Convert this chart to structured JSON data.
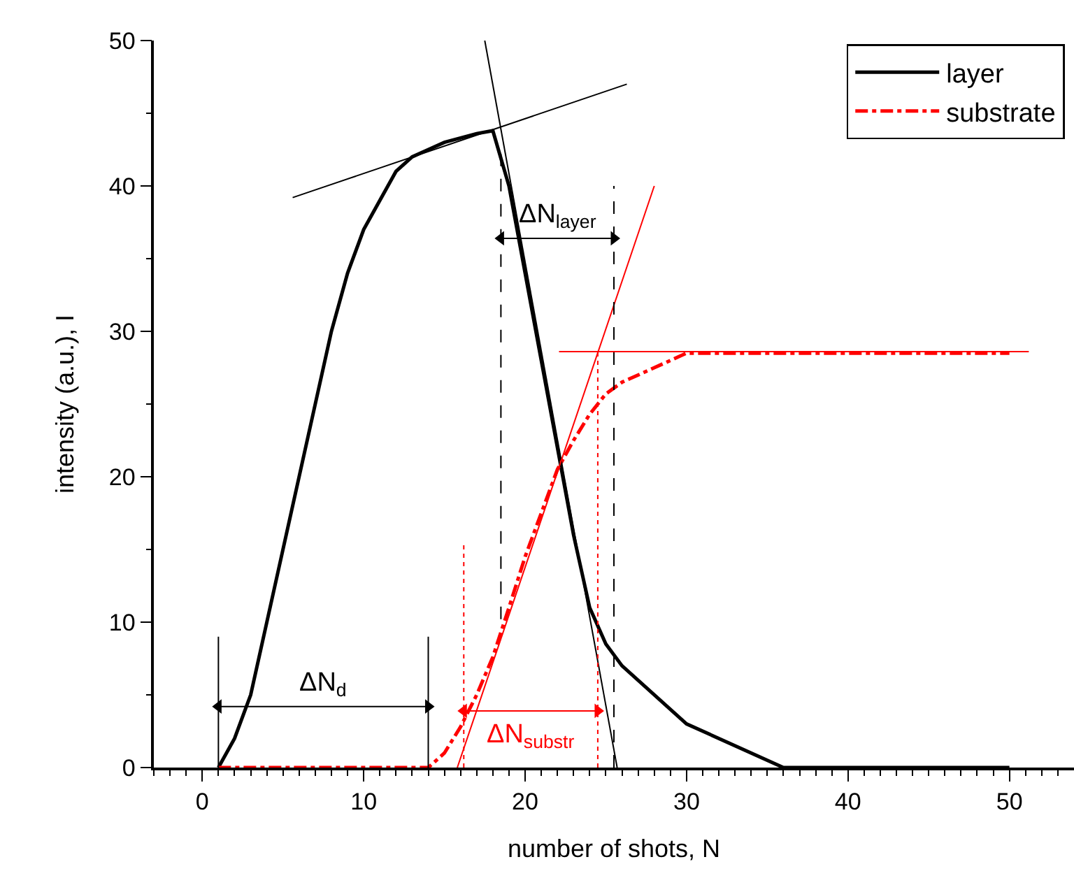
{
  "chart_data": {
    "type": "line",
    "xlabel": "number of shots, N",
    "ylabel": "intensity (a.u.), I",
    "xlim": [
      -3,
      54
    ],
    "ylim": [
      0,
      50
    ],
    "xticks": [
      {
        "value": -3,
        "label": null
      },
      {
        "value": -2,
        "label": null
      },
      {
        "value": -1,
        "label": null
      },
      0,
      {
        "value": 1,
        "label": null
      },
      {
        "value": 2,
        "label": null
      },
      {
        "value": 3,
        "label": null
      },
      {
        "value": 4,
        "label": null
      },
      {
        "value": 5,
        "label": null
      },
      {
        "value": 6,
        "label": null
      },
      {
        "value": 7,
        "label": null
      },
      {
        "value": 8,
        "label": null
      },
      {
        "value": 9,
        "label": null
      },
      10,
      {
        "value": 11,
        "label": null
      },
      {
        "value": 12,
        "label": null
      },
      {
        "value": 13,
        "label": null
      },
      {
        "value": 14,
        "label": null
      },
      {
        "value": 15,
        "label": null
      },
      {
        "value": 16,
        "label": null
      },
      {
        "value": 17,
        "label": null
      },
      {
        "value": 18,
        "label": null
      },
      {
        "value": 19,
        "label": null
      },
      20,
      {
        "value": 21,
        "label": null
      },
      {
        "value": 22,
        "label": null
      },
      {
        "value": 23,
        "label": null
      },
      {
        "value": 24,
        "label": null
      },
      {
        "value": 25,
        "label": null
      },
      {
        "value": 26,
        "label": null
      },
      {
        "value": 27,
        "label": null
      },
      {
        "value": 28,
        "label": null
      },
      {
        "value": 29,
        "label": null
      },
      30,
      {
        "value": 31,
        "label": null
      },
      {
        "value": 32,
        "label": null
      },
      {
        "value": 33,
        "label": null
      },
      {
        "value": 34,
        "label": null
      },
      {
        "value": 35,
        "label": null
      },
      {
        "value": 36,
        "label": null
      },
      {
        "value": 37,
        "label": null
      },
      {
        "value": 38,
        "label": null
      },
      {
        "value": 39,
        "label": null
      },
      40,
      {
        "value": 41,
        "label": null
      },
      {
        "value": 42,
        "label": null
      },
      {
        "value": 43,
        "label": null
      },
      {
        "value": 44,
        "label": null
      },
      {
        "value": 45,
        "label": null
      },
      {
        "value": 46,
        "label": null
      },
      {
        "value": 47,
        "label": null
      },
      {
        "value": 48,
        "label": null
      },
      {
        "value": 49,
        "label": null
      },
      50,
      {
        "value": 51,
        "label": null
      },
      {
        "value": 52,
        "label": null
      },
      {
        "value": 53,
        "label": null
      }
    ],
    "yticks": [
      0,
      {
        "value": 5,
        "label": null
      },
      10,
      {
        "value": 15,
        "label": null
      },
      20,
      {
        "value": 25,
        "label": null
      },
      30,
      {
        "value": 35,
        "label": null
      },
      40,
      {
        "value": 45,
        "label": null
      },
      50
    ],
    "grid": false,
    "legend": "top right",
    "marker": "none",
    "series": [
      {
        "name": "layer",
        "color": "#000000",
        "line_style": "solid",
        "x": [
          1,
          2,
          3,
          4,
          5,
          6,
          7,
          8,
          9,
          10,
          11,
          12,
          13,
          14,
          15,
          16,
          17,
          18,
          19,
          20,
          21,
          22,
          23,
          24,
          25,
          26,
          30,
          36,
          50
        ],
        "values": [
          0,
          2,
          5,
          10,
          15,
          20,
          25,
          30,
          34,
          37,
          39,
          41,
          42,
          42.5,
          43,
          43.3,
          43.6,
          43.8,
          40,
          34,
          28,
          22,
          16,
          11,
          8.5,
          7,
          3,
          0,
          0
        ]
      },
      {
        "name": "substrate",
        "color": "#ff0000",
        "line_style": "dashdot",
        "x": [
          1,
          14,
          15,
          16,
          17,
          18,
          19,
          20,
          21,
          22,
          23,
          24,
          25,
          26,
          28,
          30,
          50
        ],
        "values": [
          0,
          0,
          1,
          2.8,
          5,
          7.6,
          11,
          14.5,
          17.5,
          20.5,
          22.5,
          24.3,
          25.7,
          26.5,
          27.5,
          28.5,
          28.5
        ]
      },
      {
        "type": "line",
        "color": "#000000",
        "line_style": "solid",
        "x": [
          5.6,
          26.3
        ],
        "values": [
          39.2,
          47
        ]
      },
      {
        "type": "line",
        "color": "#000000",
        "line_style": "solid",
        "x": [
          17.5,
          25.7
        ],
        "values": [
          50,
          0
        ]
      },
      {
        "type": "line",
        "color": "#ff0000",
        "line_style": "solid",
        "x": [
          15.8,
          28
        ],
        "values": [
          0,
          40
        ]
      },
      {
        "type": "line",
        "color": "#ff0000",
        "line_style": "solid",
        "x": [
          22.1,
          51.2
        ],
        "values": [
          28.6,
          28.6
        ]
      },
      {
        "type": "line",
        "color": "#000000",
        "line_style": "dashed",
        "x": [
          18.5,
          18.5
        ],
        "values": [
          10.2,
          42.2
        ]
      },
      {
        "type": "line",
        "color": "#000000",
        "line_style": "dashed",
        "x": [
          25.5,
          25.5
        ],
        "values": [
          0,
          40
        ]
      },
      {
        "type": "line",
        "color": "#ff0000",
        "line_style": "dotted",
        "x": [
          16.2,
          16.2
        ],
        "values": [
          0,
          15.5
        ]
      },
      {
        "type": "line",
        "color": "#ff0000",
        "line_style": "dotted",
        "x": [
          24.5,
          24.5
        ],
        "values": [
          0,
          28.6
        ]
      },
      {
        "type": "line",
        "color": "#000000",
        "line_style": "solid",
        "x": [
          1,
          1
        ],
        "values": [
          0,
          9
        ]
      },
      {
        "type": "line",
        "color": "#000000",
        "line_style": "solid",
        "x": [
          14,
          14
        ],
        "values": [
          0,
          9
        ]
      },
      {
        "type": "line",
        "color": "#000000",
        "line_style": "solid",
        "marker": "triangle",
        "x": [
          1,
          14
        ],
        "values": [
          4.2,
          4.2
        ]
      },
      {
        "type": "line",
        "color": "#000000",
        "line_style": "solid",
        "marker": "triangle",
        "x": [
          18.5,
          25.5
        ],
        "values": [
          36.4,
          36.4
        ]
      },
      {
        "type": "line",
        "color": "#ff0000",
        "line_style": "solid",
        "marker": "triangle",
        "x": [
          16.2,
          24.5
        ],
        "values": [
          3.9,
          3.9
        ]
      }
    ],
    "annotations": [
      "ΔN$_{d}$",
      "ΔN$_{layer}$",
      "ΔN$_{substr}$"
    ]
  }
}
